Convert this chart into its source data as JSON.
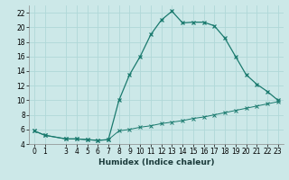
{
  "xlabel": "Humidex (Indice chaleur)",
  "bg_color": "#cce8e8",
  "line_color": "#1a7a6e",
  "grid_color": "#b0d8d8",
  "xlim": [
    -0.5,
    23.5
  ],
  "ylim": [
    4,
    23
  ],
  "yticks": [
    4,
    6,
    8,
    10,
    12,
    14,
    16,
    18,
    20,
    22
  ],
  "xticks": [
    0,
    1,
    3,
    4,
    5,
    6,
    7,
    8,
    9,
    10,
    11,
    12,
    13,
    14,
    15,
    16,
    17,
    18,
    19,
    20,
    21,
    22,
    23
  ],
  "curve1_x": [
    0,
    1,
    3,
    4,
    5,
    6,
    7,
    8,
    9,
    10,
    11,
    12,
    13,
    14,
    15,
    16,
    17,
    18,
    19,
    20,
    21,
    22,
    23
  ],
  "curve1_y": [
    5.8,
    5.2,
    4.7,
    4.7,
    4.6,
    4.5,
    4.6,
    10.0,
    13.5,
    16.0,
    19.0,
    21.0,
    22.2,
    20.6,
    20.7,
    20.7,
    20.2,
    18.5,
    16.0,
    13.5,
    12.2,
    11.2,
    10.0
  ],
  "curve2_x": [
    0,
    1,
    3,
    4,
    5,
    6,
    7,
    8,
    9,
    10,
    11,
    12,
    13,
    14,
    15,
    16,
    17,
    18,
    19,
    20,
    21,
    22,
    23
  ],
  "curve2_y": [
    5.8,
    5.2,
    4.7,
    4.7,
    4.6,
    4.5,
    4.6,
    5.8,
    6.0,
    6.3,
    6.5,
    6.8,
    7.0,
    7.2,
    7.5,
    7.7,
    8.0,
    8.3,
    8.6,
    8.9,
    9.2,
    9.5,
    9.8
  ],
  "xlabel_fontsize": 6.5,
  "tick_fontsize": 5.5
}
